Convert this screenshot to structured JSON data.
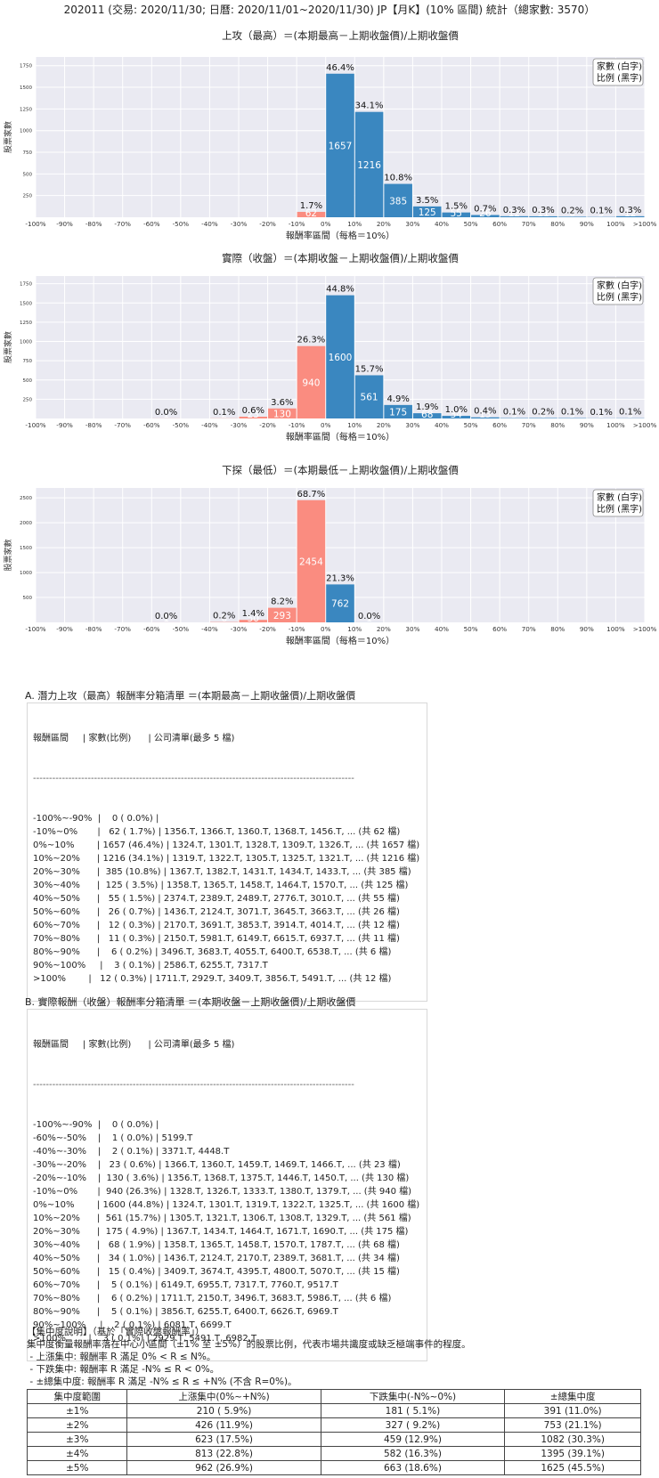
{
  "page_title": "202011 (交易: 2020/11/30; 日曆: 2020/11/01~2020/11/30) JP【月K】(10% 區間) 統計（總家數: 3570）",
  "chart_data": [
    {
      "type": "bar",
      "title": "上攻（最高）＝(本期最高－上期收盤價)/上期收盤價",
      "xlabel": "報酬率區間（每格＝10%）",
      "ylabel": "股票家數",
      "legend": [
        "家數 (白字)",
        "比例 (黑字)"
      ],
      "legend_position": "top-right",
      "categories": [
        "-100%~-90%",
        "-90%~-80%",
        "-80%~-70%",
        "-70%~-60%",
        "-60%~-50%",
        "-50%~-40%",
        "-40%~-30%",
        "-30%~-20%",
        "-20%~-10%",
        "-10%~0%",
        "0%~10%",
        "10%~20%",
        "20%~30%",
        "30%~40%",
        "40%~50%",
        "50%~60%",
        "60%~70%",
        "70%~80%",
        "80%~90%",
        "90%~100%",
        ">100%"
      ],
      "xticks": [
        "-100%",
        "-90%",
        "-80%",
        "-70%",
        "-60%",
        "-50%",
        "-40%",
        "-30%",
        "-20%",
        "-10%",
        "0%",
        "10%",
        "20%",
        "30%",
        "40%",
        "50%",
        "60%",
        "70%",
        "80%",
        "90%",
        "100%",
        ">100%"
      ],
      "values": [
        0,
        0,
        0,
        0,
        0,
        0,
        0,
        0,
        0,
        62,
        1657,
        1216,
        385,
        125,
        55,
        26,
        12,
        11,
        6,
        3,
        12
      ],
      "pct_labels": [
        "",
        "",
        "",
        "",
        "",
        "",
        "",
        "",
        "",
        "1.7%",
        "46.4%",
        "34.1%",
        "10.8%",
        "3.5%",
        "1.5%",
        "0.7%",
        "0.3%",
        "0.3%",
        "0.2%",
        "0.1%",
        "0.3%"
      ],
      "yticks": [
        250,
        500,
        750,
        1000,
        1250,
        1500,
        1750
      ],
      "ylim": [
        0,
        1850
      ],
      "grid": true
    },
    {
      "type": "bar",
      "title": "實際（收盤）＝(本期收盤－上期收盤價)/上期收盤價",
      "xlabel": "報酬率區間（每格＝10%）",
      "ylabel": "股票家數",
      "legend": [
        "家數 (白字)",
        "比例 (黑字)"
      ],
      "legend_position": "top-right",
      "categories": [
        "-100%~-90%",
        "-90%~-80%",
        "-80%~-70%",
        "-70%~-60%",
        "-60%~-50%",
        "-50%~-40%",
        "-40%~-30%",
        "-30%~-20%",
        "-20%~-10%",
        "-10%~0%",
        "0%~10%",
        "10%~20%",
        "20%~30%",
        "30%~40%",
        "40%~50%",
        "50%~60%",
        "60%~70%",
        "70%~80%",
        "80%~90%",
        "90%~100%",
        ">100%"
      ],
      "xticks": [
        "-100%",
        "-90%",
        "-80%",
        "-70%",
        "-60%",
        "-50%",
        "-40%",
        "-30%",
        "-20%",
        "-10%",
        "0%",
        "10%",
        "20%",
        "30%",
        "40%",
        "50%",
        "60%",
        "70%",
        "80%",
        "90%",
        "100%",
        ">100%"
      ],
      "values": [
        0,
        0,
        0,
        0,
        1,
        0,
        2,
        23,
        130,
        940,
        1600,
        561,
        175,
        68,
        34,
        15,
        5,
        6,
        5,
        2,
        3
      ],
      "pct_labels": [
        "",
        "",
        "",
        "",
        "0.0%",
        "",
        "0.1%",
        "0.6%",
        "3.6%",
        "26.3%",
        "44.8%",
        "15.7%",
        "4.9%",
        "1.9%",
        "1.0%",
        "0.4%",
        "0.1%",
        "0.2%",
        "0.1%",
        "0.1%",
        "0.1%"
      ],
      "yticks": [
        250,
        500,
        750,
        1000,
        1250,
        1500,
        1750
      ],
      "ylim": [
        0,
        1850
      ],
      "grid": true
    },
    {
      "type": "bar",
      "title": "下探（最低）＝(本期最低－上期收盤價)/上期收盤價",
      "xlabel": "報酬率區間（每格＝10%）",
      "ylabel": "股票家數",
      "legend": [
        "家數 (白字)",
        "比例 (黑字)"
      ],
      "legend_position": "top-right",
      "categories": [
        "-100%~-90%",
        "-90%~-80%",
        "-80%~-70%",
        "-70%~-60%",
        "-60%~-50%",
        "-50%~-40%",
        "-40%~-30%",
        "-30%~-20%",
        "-20%~-10%",
        "-10%~0%",
        "0%~10%",
        "10%~20%",
        "20%~30%",
        "30%~40%",
        "40%~50%",
        "50%~60%",
        "60%~70%",
        "70%~80%",
        "80%~90%",
        "90%~100%",
        ">100%"
      ],
      "xticks": [
        "-100%",
        "-90%",
        "-80%",
        "-70%",
        "-60%",
        "-50%",
        "-40%",
        "-30%",
        "-20%",
        "-10%",
        "0%",
        "10%",
        "20%",
        "30%",
        "40%",
        "50%",
        "60%",
        "70%",
        "80%",
        "90%",
        "100%",
        ">100%"
      ],
      "values": [
        0,
        0,
        0,
        0,
        1,
        0,
        6,
        50,
        293,
        2454,
        762,
        1,
        0,
        0,
        0,
        0,
        0,
        0,
        0,
        0,
        0
      ],
      "pct_labels": [
        "",
        "",
        "",
        "",
        "0.0%",
        "",
        "0.2%",
        "1.4%",
        "8.2%",
        "68.7%",
        "21.3%",
        "0.0%",
        "",
        "",
        "",
        "",
        "",
        "",
        "",
        "",
        ""
      ],
      "yticks": [
        500,
        1000,
        1500,
        2000,
        2500
      ],
      "ylim": [
        0,
        2700
      ],
      "grid": true
    }
  ],
  "colors": {
    "negative_bar": "#fa8c80",
    "positive_bar": "#3a87c0",
    "plot_bg": "#eaeaf2",
    "grid": "#ffffff"
  },
  "sectionA": {
    "title": "A. 潛力上攻（最高）報酬率分箱清單 ＝(本期最高－上期收盤價)/上期收盤價",
    "header": "報酬區間     | 家數(比例)      | 公司清單(最多 5 檔)",
    "separator": "----------------------------------------------------------------------------------------------------",
    "rows": [
      "-100%~-90%  |    0 ( 0.0%) |",
      "-10%~0%       |   62 ( 1.7%) | 1356.T, 1366.T, 1360.T, 1368.T, 1456.T, ... (共 62 檔)",
      "0%~10%        | 1657 (46.4%) | 1324.T, 1301.T, 1328.T, 1309.T, 1326.T, ... (共 1657 檔)",
      "10%~20%      | 1216 (34.1%) | 1319.T, 1322.T, 1305.T, 1325.T, 1321.T, ... (共 1216 檔)",
      "20%~30%      |  385 (10.8%) | 1367.T, 1382.T, 1431.T, 1434.T, 1433.T, ... (共 385 檔)",
      "30%~40%      |  125 ( 3.5%) | 1358.T, 1365.T, 1458.T, 1464.T, 1570.T, ... (共 125 檔)",
      "40%~50%      |   55 ( 1.5%) | 2374.T, 2389.T, 2489.T, 2776.T, 3010.T, ... (共 55 檔)",
      "50%~60%      |   26 ( 0.7%) | 1436.T, 2124.T, 3071.T, 3645.T, 3663.T, ... (共 26 檔)",
      "60%~70%      |   12 ( 0.3%) | 2170.T, 3691.T, 3853.T, 3914.T, 4014.T, ... (共 12 檔)",
      "70%~80%      |   11 ( 0.3%) | 2150.T, 5981.T, 6149.T, 6615.T, 6937.T, ... (共 11 檔)",
      "80%~90%      |    6 ( 0.2%) | 3496.T, 3683.T, 4055.T, 6400.T, 6538.T, ... (共 6 檔)",
      "90%~100%     |    3 ( 0.1%) | 2586.T, 6255.T, 7317.T",
      ">100%        |   12 ( 0.3%) | 1711.T, 2929.T, 3409.T, 3856.T, 5491.T, ... (共 12 檔)"
    ]
  },
  "sectionB": {
    "title": "B. 實際報酬（收盤）報酬率分箱清單 ＝(本期收盤－上期收盤價)/上期收盤價",
    "header": "報酬區間     | 家數(比例)      | 公司清單(最多 5 檔)",
    "separator": "----------------------------------------------------------------------------------------------------",
    "rows": [
      "-100%~-90%  |    0 ( 0.0%) |",
      "-60%~-50%    |    1 ( 0.0%) | 5199.T",
      "-40%~-30%    |    2 ( 0.1%) | 3371.T, 4448.T",
      "-30%~-20%    |   23 ( 0.6%) | 1366.T, 1360.T, 1459.T, 1469.T, 1466.T, ... (共 23 檔)",
      "-20%~-10%    |  130 ( 3.6%) | 1356.T, 1368.T, 1375.T, 1446.T, 1450.T, ... (共 130 檔)",
      "-10%~0%       |  940 (26.3%) | 1328.T, 1326.T, 1333.T, 1380.T, 1379.T, ... (共 940 檔)",
      "0%~10%        | 1600 (44.8%) | 1324.T, 1301.T, 1319.T, 1322.T, 1325.T, ... (共 1600 檔)",
      "10%~20%      |  561 (15.7%) | 1305.T, 1321.T, 1306.T, 1308.T, 1329.T, ... (共 561 檔)",
      "20%~30%      |  175 ( 4.9%) | 1367.T, 1434.T, 1464.T, 1671.T, 1690.T, ... (共 175 檔)",
      "30%~40%      |   68 ( 1.9%) | 1358.T, 1365.T, 1458.T, 1570.T, 1787.T, ... (共 68 檔)",
      "40%~50%      |   34 ( 1.0%) | 1436.T, 2124.T, 2170.T, 2389.T, 3681.T, ... (共 34 檔)",
      "50%~60%      |   15 ( 0.4%) | 3409.T, 3674.T, 4395.T, 4800.T, 5070.T, ... (共 15 檔)",
      "60%~70%      |    5 ( 0.1%) | 6149.T, 6955.T, 7317.T, 7760.T, 9517.T",
      "70%~80%      |    6 ( 0.2%) | 1711.T, 2150.T, 3496.T, 3683.T, 5986.T, ... (共 6 檔)",
      "80%~90%      |    5 ( 0.1%) | 3856.T, 6255.T, 6400.T, 6626.T, 6969.T",
      "90%~100%     |    2 ( 0.1%) | 6081.T, 6699.T",
      ">100%        |    3 ( 0.1%) | 2929.T, 5491.T, 6982.T"
    ]
  },
  "concentration": {
    "title": "【集中度說明】（基於「實際收盤報酬率」）",
    "desc": "集中度衡量報酬率落在中心小區間（±1% 至 ±5%）的股票比例，代表市場共識度或缺乏極端事件的程度。",
    "bullets": [
      " - 上漲集中: 報酬率 R 滿足 0% < R ≤ N%。",
      " - 下跌集中: 報酬率 R 滿足 -N% ≤ R < 0%。",
      " - ±總集中度: 報酬率 R 滿足 -N% ≤ R ≤ +N% (不含 R=0%)。"
    ],
    "headers": [
      "集中度範圍",
      "上漲集中(0%~+N%)",
      "下跌集中(-N%~0%)",
      "±總集中度"
    ],
    "rows": [
      [
        "±1%",
        "210 ( 5.9%)",
        "181 ( 5.1%)",
        "391 (11.0%)"
      ],
      [
        "±2%",
        "426 (11.9%)",
        "327 ( 9.2%)",
        "753 (21.1%)"
      ],
      [
        "±3%",
        "623 (17.5%)",
        "459 (12.9%)",
        "1082 (30.3%)"
      ],
      [
        "±4%",
        "813 (22.8%)",
        "582 (16.3%)",
        "1395 (39.1%)"
      ],
      [
        "±5%",
        "962 (26.9%)",
        "663 (18.6%)",
        "1625 (45.5%)"
      ]
    ]
  }
}
